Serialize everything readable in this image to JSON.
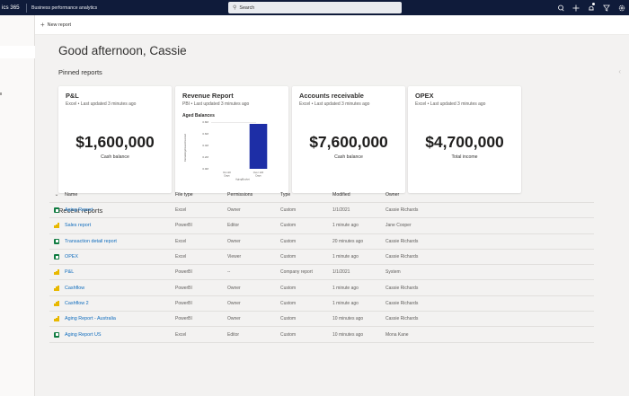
{
  "topbar": {
    "app_name": "ics 365",
    "product": "Business performance analytics",
    "search_placeholder": "Search",
    "icons": [
      "lightbulb-icon",
      "add-icon",
      "notification-icon",
      "filter-icon",
      "settings-icon"
    ]
  },
  "command_bar": {
    "new_report": "New report"
  },
  "main": {
    "greeting": "Good afternoon, Cassie",
    "pinned_title": "Pinned reports",
    "recent_title": "Recent reports"
  },
  "cards": [
    {
      "title": "P&L",
      "subtitle": "Excel • Last updated 3 minutes ago",
      "value": "$1,600,000",
      "caption": "Cash balance"
    },
    {
      "title": "Revenue Report",
      "subtitle": "PBI • Last updated 3 minutes ago"
    },
    {
      "title": "Accounts receivable",
      "subtitle": "Excel • Last updated 3 minutes ago",
      "value": "$7,600,000",
      "caption": "Cash balance"
    },
    {
      "title": "OPEX",
      "subtitle": "Excel • Last updated 3 minutes ago",
      "value": "$4,700,000",
      "caption": "Total income"
    }
  ],
  "chart_data": {
    "type": "bar",
    "title": "Aged Balances",
    "categories": [
      "91-120 Days",
      "Over 120 Days"
    ],
    "values": [
      0,
      0.77
    ],
    "ylabel": "RemainingAmountInvoiced",
    "xlabel": "AgingBucket",
    "yticks": [
      "0.8M",
      "0.6M",
      "0.4M",
      "0.2M",
      "0.0M"
    ],
    "ylim": [
      0,
      0.8
    ],
    "colors": {
      "bar": "#1d2ea6"
    }
  },
  "table": {
    "headers": {
      "name": "Name",
      "file_type": "File type",
      "permissions": "Permissions",
      "type": "Type",
      "modified": "Modified",
      "owner": "Owner"
    },
    "rows": [
      {
        "icon": "excel",
        "name": "Aging Report",
        "file_type": "Excel",
        "permissions": "Owner",
        "type": "Custom",
        "modified": "1/1/2021",
        "owner": "Cassie Richards"
      },
      {
        "icon": "powerbi",
        "name": "Sales report",
        "file_type": "PowerBI",
        "permissions": "Editor",
        "type": "Custom",
        "modified": "1 minute ago",
        "owner": "Jane Cooper"
      },
      {
        "icon": "excel",
        "name": "Transaction detail report",
        "file_type": "Excel",
        "permissions": "Owner",
        "type": "Custom",
        "modified": "20 minutes ago",
        "owner": "Cassie Richards"
      },
      {
        "icon": "excel",
        "name": "OPEX",
        "file_type": "Excel",
        "permissions": "Viewer",
        "type": "Custom",
        "modified": "1 minute ago",
        "owner": "Cassie Richards"
      },
      {
        "icon": "powerbi",
        "name": "P&L",
        "file_type": "PowerBI",
        "permissions": "--",
        "type": "Company report",
        "modified": "1/1/2021",
        "owner": "System"
      },
      {
        "icon": "powerbi",
        "name": "Cashflow",
        "file_type": "PowerBI",
        "permissions": "Owner",
        "type": "Custom",
        "modified": "1 minute ago",
        "owner": "Cassie Richards"
      },
      {
        "icon": "powerbi",
        "name": "Cashflow 2",
        "file_type": "PowerBI",
        "permissions": "Owner",
        "type": "Custom",
        "modified": "1 minute ago",
        "owner": "Cassie Richards"
      },
      {
        "icon": "powerbi",
        "name": "Aging Report - Australia",
        "file_type": "PowerBI",
        "permissions": "Owner",
        "type": "Custom",
        "modified": "10 minutes ago",
        "owner": "Cassie Richards"
      },
      {
        "icon": "excel",
        "name": "Aging Report US",
        "file_type": "Excel",
        "permissions": "Editor",
        "type": "Custom",
        "modified": "10 minutes ago",
        "owner": "Mona Kane"
      }
    ]
  }
}
